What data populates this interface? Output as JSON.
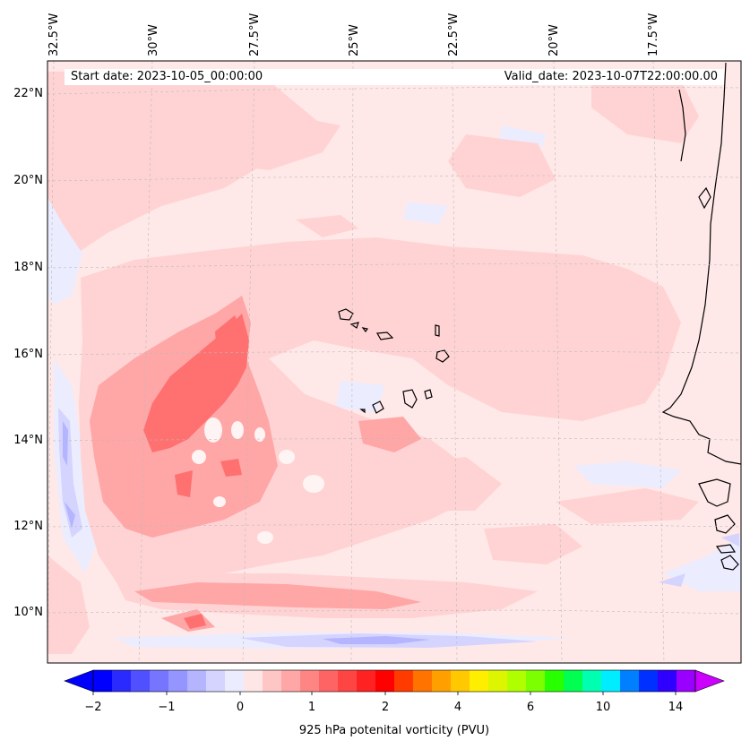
{
  "header": {
    "start_date": "Start date: 2023-10-05_00:00:00",
    "valid_date": "Valid_date: 2023-10-07T22:00:00.00"
  },
  "map": {
    "extent": {
      "lon_min": -32.8,
      "lon_max": -15.6,
      "lat_min": 8.9,
      "lat_max": 22.8
    },
    "longitude_labels": [
      "32.5°W",
      "30°W",
      "27.5°W",
      "25°W",
      "22.5°W",
      "20°W",
      "17.5°W"
    ],
    "latitude_labels": [
      "22°N",
      "20°N",
      "18°N",
      "16°N",
      "14°N",
      "12°N",
      "10°N"
    ],
    "gridlines": true,
    "background_color": "#ffe8e8"
  },
  "colorbar": {
    "label": "925 hPa potenital vorticity (PVU)",
    "ticks": [
      "−2",
      "−1",
      "0",
      "1",
      "2",
      "4",
      "6",
      "10",
      "14"
    ],
    "extend": "both",
    "colors": [
      "#0000ff",
      "#2a2aff",
      "#5050ff",
      "#7575ff",
      "#9595ff",
      "#b4b4ff",
      "#d4d4ff",
      "#ececff",
      "#ffe6e6",
      "#ffc6c6",
      "#ffa6a6",
      "#ff8585",
      "#ff6464",
      "#ff4444",
      "#ff2222",
      "#ff0000",
      "#ff3b00",
      "#ff7400",
      "#ffa000",
      "#ffc800",
      "#ffee00",
      "#ddf500",
      "#b0ff00",
      "#7cff00",
      "#28ff00",
      "#00ff50",
      "#00ffb0",
      "#00ecff",
      "#0080ff",
      "#0030ff",
      "#3000ff",
      "#9a00ff"
    ],
    "under_color": "#0000ff",
    "over_color": "#cc00ff"
  }
}
